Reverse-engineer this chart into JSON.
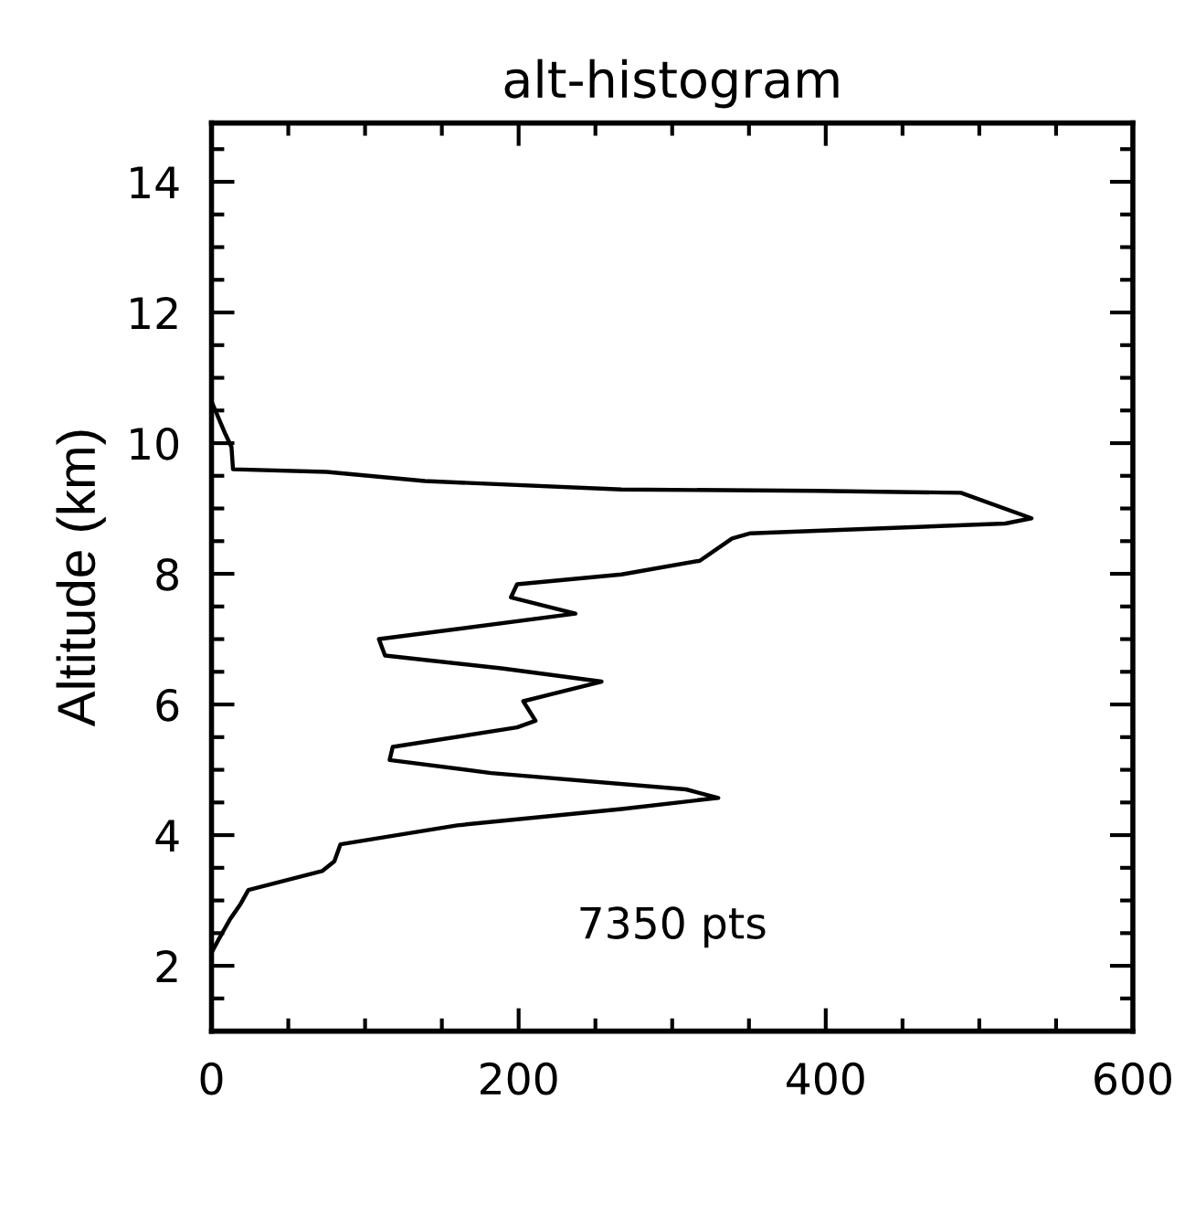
{
  "chart_data": {
    "type": "line",
    "title": "alt-histogram",
    "ylabel": "Altitude (km)",
    "annotations": [
      "7350 pts"
    ],
    "series": [
      {
        "color": "#000000",
        "x": [
          0,
          9,
          13,
          14,
          75,
          139,
          267,
          394,
          488,
          534,
          517,
          351,
          339,
          318,
          267,
          199,
          195,
          237,
          109,
          113,
          190,
          254,
          203,
          211,
          199,
          118,
          116,
          182,
          309,
          330,
          267,
          160,
          84,
          80,
          72,
          24,
          19,
          12,
          6,
          0
        ],
        "values": [
          10.64,
          10.14,
          9.94,
          9.6,
          9.56,
          9.42,
          9.29,
          9.27,
          9.24,
          8.85,
          8.77,
          8.62,
          8.54,
          8.2,
          7.99,
          7.84,
          7.64,
          7.39,
          7.0,
          6.75,
          6.55,
          6.35,
          6.05,
          5.75,
          5.65,
          5.35,
          5.15,
          4.95,
          4.7,
          4.57,
          4.4,
          4.15,
          3.86,
          3.6,
          3.45,
          3.16,
          2.95,
          2.71,
          2.46,
          2.2
        ]
      }
    ],
    "xlim": [
      0,
      600
    ],
    "xticks": [
      0,
      200,
      400,
      600
    ],
    "ylim": [
      1,
      14.9
    ],
    "yticks": [
      2,
      4,
      6,
      8,
      10,
      12,
      14
    ],
    "grid": false,
    "legend": false,
    "marker": "none",
    "line_style": "solid"
  }
}
